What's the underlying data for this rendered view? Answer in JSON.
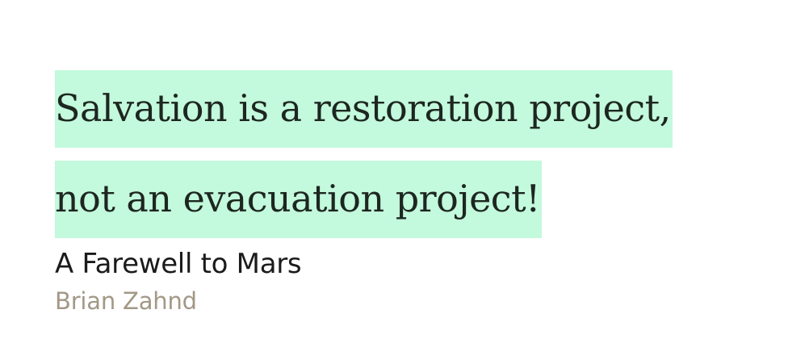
{
  "quote": {
    "lines": [
      "Salvation is a restoration project,",
      "not an evacuation project!"
    ]
  },
  "source": {
    "title": "A Farewell to Mars",
    "author": "Brian Zahnd"
  },
  "colors": {
    "highlight": "#c3f9dc",
    "quote_text": "#1d2620",
    "title_text": "#1b1b1b",
    "author_text": "#a29886"
  }
}
